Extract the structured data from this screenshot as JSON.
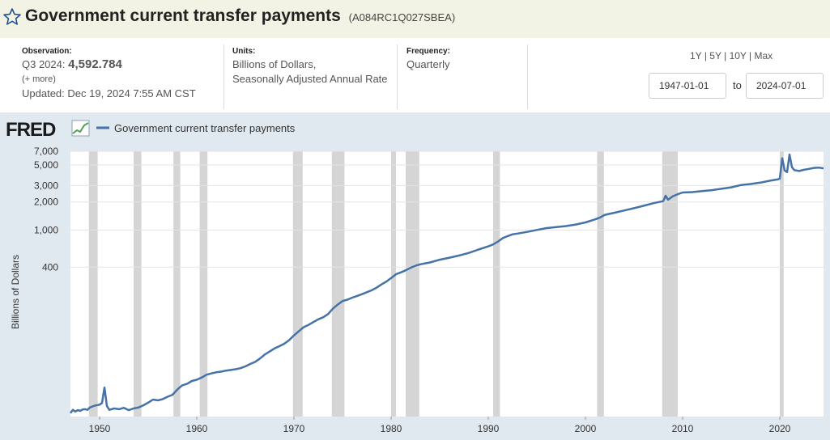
{
  "header": {
    "title": "Government current transfer payments",
    "series_id": "(A084RC1Q027SBEA)",
    "star_icon": "star-outline-icon"
  },
  "meta": {
    "observation_label": "Observation:",
    "observation_period": "Q3 2024:",
    "observation_value": "4,592.784",
    "more_link": "(+ more)",
    "updated_label": "Updated:",
    "updated_value": "Dec 19, 2024 7:55 AM CST",
    "units_label": "Units:",
    "units_line1": "Billions of Dollars,",
    "units_line2": "Seasonally Adjusted Annual Rate",
    "frequency_label": "Frequency:",
    "frequency_value": "Quarterly"
  },
  "controls": {
    "range_1y": "1Y",
    "range_5y": "5Y",
    "range_10y": "10Y",
    "range_max": "Max",
    "separator": "|",
    "start_date": "1947-01-01",
    "end_date": "2024-07-01",
    "to_label": "to"
  },
  "fred_logo": "FRED",
  "colors": {
    "line": "#4572a7",
    "recession": "#d5d5d5",
    "panel": "#e1e9f0",
    "title_bar": "#f3f3e5"
  },
  "chart_data": {
    "type": "line",
    "scale": "log",
    "legend": "Government current transfer payments",
    "legend_position": "top-left",
    "ylabel": "Billions of Dollars",
    "xlabel": "",
    "ylim": [
      10,
      7000
    ],
    "xlim": [
      1947.0,
      2024.5
    ],
    "y_ticks": [
      400,
      1000,
      2000,
      3000,
      5000,
      7000
    ],
    "y_tick_labels": [
      "400",
      "1,000",
      "2,000",
      "3,000",
      "5,000",
      "7,000"
    ],
    "x_ticks": [
      1950,
      1960,
      1970,
      1980,
      1990,
      2000,
      2010,
      2020
    ],
    "recessions": [
      [
        1948.9,
        1949.8
      ],
      [
        1953.5,
        1954.3
      ],
      [
        1957.6,
        1958.3
      ],
      [
        1960.3,
        1961.1
      ],
      [
        1969.9,
        1970.9
      ],
      [
        1973.9,
        1975.2
      ],
      [
        1980.0,
        1980.5
      ],
      [
        1981.5,
        1982.9
      ],
      [
        1990.5,
        1991.2
      ],
      [
        2001.2,
        2001.9
      ],
      [
        2007.9,
        2009.5
      ],
      [
        2020.0,
        2020.4
      ]
    ],
    "series": [
      {
        "name": "Government current transfer payments",
        "x": [
          1947.0,
          1947.25,
          1947.5,
          1947.75,
          1948.0,
          1948.25,
          1948.5,
          1948.75,
          1949.0,
          1949.5,
          1950.0,
          1950.25,
          1950.5,
          1950.75,
          1951.0,
          1951.5,
          1952.0,
          1952.5,
          1953.0,
          1953.5,
          1954.0,
          1954.5,
          1955.0,
          1955.5,
          1956.0,
          1956.5,
          1957.0,
          1957.5,
          1958.0,
          1958.5,
          1959.0,
          1959.5,
          1960.0,
          1960.5,
          1961.0,
          1961.5,
          1962.0,
          1962.5,
          1963.0,
          1963.5,
          1964.0,
          1964.5,
          1965.0,
          1965.5,
          1966.0,
          1966.5,
          1967.0,
          1967.5,
          1968.0,
          1968.5,
          1969.0,
          1969.5,
          1970.0,
          1970.5,
          1971.0,
          1971.5,
          1972.0,
          1972.5,
          1973.0,
          1973.5,
          1974.0,
          1974.5,
          1975.0,
          1975.5,
          1976.0,
          1976.5,
          1977.0,
          1977.5,
          1978.0,
          1978.5,
          1979.0,
          1979.5,
          1980.0,
          1980.5,
          1981.0,
          1981.5,
          1982.0,
          1982.5,
          1983.0,
          1983.5,
          1984.0,
          1985.0,
          1986.0,
          1987.0,
          1988.0,
          1989.0,
          1990.0,
          1990.5,
          1991.0,
          1991.5,
          1992.0,
          1992.5,
          1993.0,
          1994.0,
          1995.0,
          1996.0,
          1997.0,
          1998.0,
          1999.0,
          2000.0,
          2001.0,
          2001.5,
          2002.0,
          2003.0,
          2004.0,
          2005.0,
          2006.0,
          2007.0,
          2008.0,
          2008.25,
          2008.5,
          2009.0,
          2009.5,
          2010.0,
          2011.0,
          2012.0,
          2013.0,
          2014.0,
          2015.0,
          2016.0,
          2017.0,
          2018.0,
          2019.0,
          2019.75,
          2020.0,
          2020.25,
          2020.5,
          2020.75,
          2021.0,
          2021.25,
          2021.5,
          2022.0,
          2022.5,
          2023.0,
          2023.5,
          2024.0,
          2024.5
        ],
        "values": [
          10.9,
          11.8,
          11.3,
          11.7,
          11.5,
          11.9,
          12.0,
          11.8,
          12.5,
          13.1,
          13.4,
          14.0,
          20.5,
          13.0,
          11.8,
          12.2,
          12.0,
          12.4,
          11.7,
          12.2,
          12.5,
          13.2,
          14.1,
          15.2,
          14.9,
          15.4,
          16.3,
          17.1,
          19.5,
          21.6,
          22.4,
          24.1,
          24.8,
          26.2,
          28.1,
          29.0,
          29.8,
          30.3,
          31.1,
          31.6,
          32.2,
          33.0,
          34.5,
          36.6,
          38.5,
          41.9,
          46.3,
          49.8,
          53.7,
          56.8,
          60.4,
          65.9,
          74.1,
          82.1,
          90.8,
          96.2,
          103.0,
          110.4,
          115.9,
          125.3,
          143.2,
          158.7,
          173.1,
          179.2,
          188.4,
          196.3,
          205.1,
          215.4,
          226.0,
          240.8,
          260.7,
          279.6,
          305.7,
          335.5,
          351.6,
          369.9,
          394.0,
          413.5,
          429.4,
          439.0,
          449.5,
          480.7,
          505.4,
          533.4,
          568.4,
          618.1,
          668.4,
          701.4,
          752.8,
          820.8,
          861.3,
          900.4,
          917.0,
          955.8,
          1003.1,
          1049.6,
          1076.4,
          1103.0,
          1146.0,
          1207.9,
          1301.3,
          1364.8,
          1456.7,
          1533.5,
          1622.0,
          1714.7,
          1822.5,
          1941.5,
          2039.6,
          2331.5,
          2115.4,
          2303.7,
          2421.5,
          2526.1,
          2551.3,
          2616.2,
          2677.7,
          2768.8,
          2872.3,
          3036.5,
          3118.0,
          3225.0,
          3382.0,
          3486.0,
          3564.5,
          5894.6,
          4361.6,
          4182.8,
          6467.2,
          4725.3,
          4389.6,
          4302.5,
          4431.1,
          4526.8,
          4641.6,
          4680.3,
          4592.8
        ]
      }
    ]
  }
}
